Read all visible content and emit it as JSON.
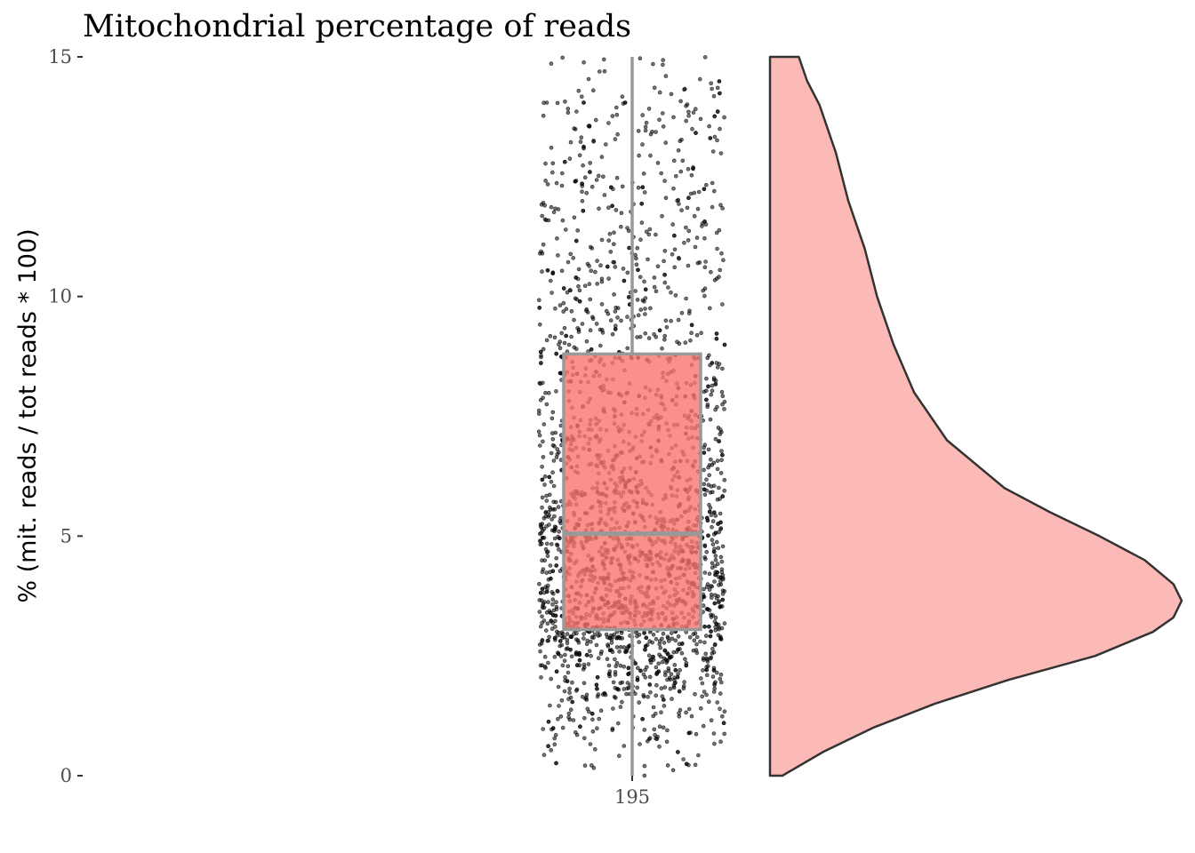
{
  "chart_data": {
    "type": "raincloud",
    "title": "Mitochondrial percentage of reads",
    "xlabel": "",
    "ylabel": "% (mit. reads / tot reads * 100)",
    "categories": [
      "195"
    ],
    "ylim": [
      0,
      15
    ],
    "yticks": [
      0,
      5,
      10,
      15
    ],
    "ytick_labels": [
      "0",
      "5",
      "10",
      "15"
    ],
    "boxplot": {
      "category": "195",
      "q1": 3.05,
      "median": 5.05,
      "q3": 8.8,
      "whisker_low": 0,
      "whisker_high": 15,
      "fill": "#f8766d",
      "line_color": "#999999"
    },
    "jitter_points": {
      "color": "#000000",
      "approx_count": 2500
    },
    "density": {
      "fill": "#f8766d",
      "outline": "#333333",
      "y": [
        0,
        0.5,
        1,
        1.5,
        2,
        2.5,
        3,
        3.3,
        3.65,
        4,
        4.5,
        5,
        5.5,
        6,
        7,
        8,
        9,
        10,
        11,
        12,
        13,
        14,
        14.5,
        15
      ],
      "density": [
        0.03,
        0.13,
        0.25,
        0.4,
        0.58,
        0.79,
        0.93,
        0.98,
        1.0,
        0.98,
        0.91,
        0.8,
        0.68,
        0.57,
        0.43,
        0.35,
        0.3,
        0.26,
        0.23,
        0.19,
        0.16,
        0.12,
        0.09,
        0.07
      ]
    },
    "grid": false,
    "legend": "none"
  }
}
